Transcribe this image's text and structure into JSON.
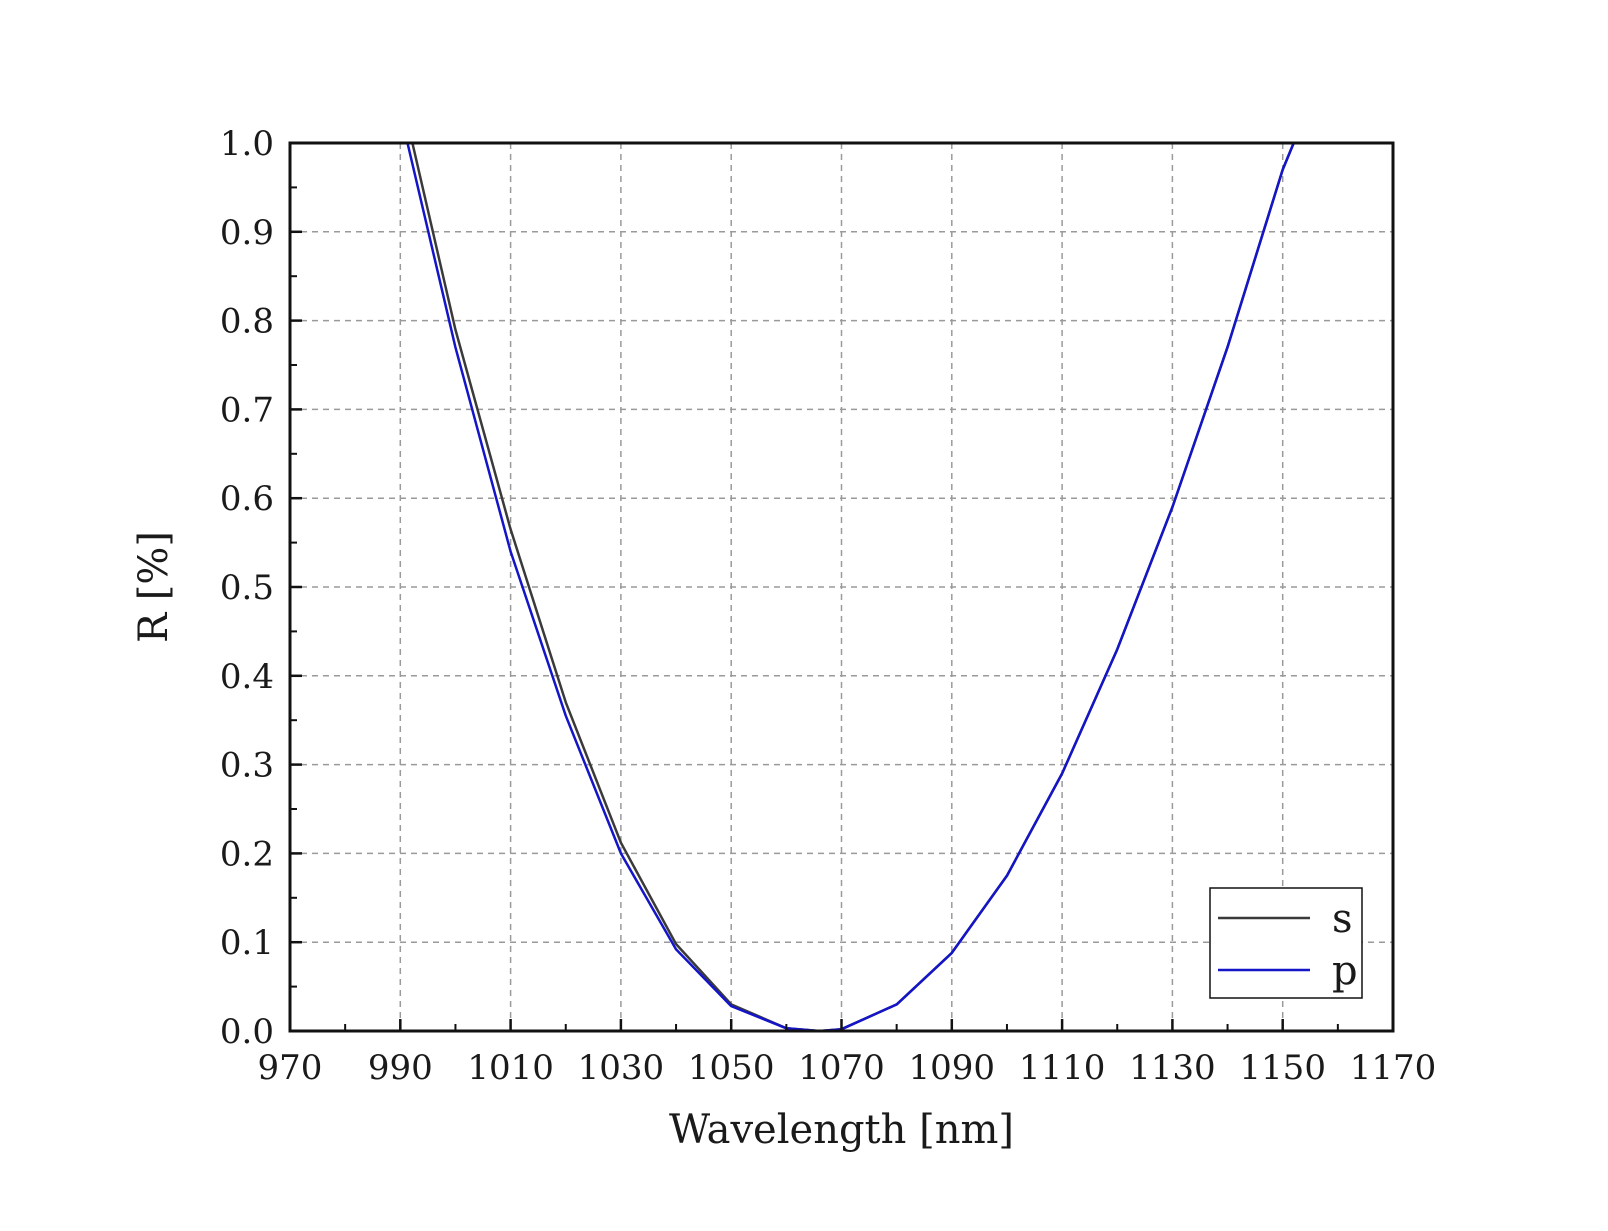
{
  "chart_data": {
    "type": "line",
    "title": "",
    "xlabel": "Wavelength [nm]",
    "ylabel": "R [%]",
    "xlim": [
      970,
      1170
    ],
    "ylim": [
      0.0,
      1.0
    ],
    "xticks": [
      "970",
      "990",
      "1010",
      "1030",
      "1050",
      "1070",
      "1090",
      "1110",
      "1130",
      "1150",
      "1170"
    ],
    "yticks": [
      "0.0",
      "0.1",
      "0.2",
      "0.3",
      "0.4",
      "0.5",
      "0.6",
      "0.7",
      "0.8",
      "0.9",
      "1.0"
    ],
    "grid": true,
    "legend_position": "bottom-right",
    "series": [
      {
        "name": "s",
        "color": "#3a3a3a",
        "x": [
          992.2,
          1000,
          1010,
          1020,
          1030,
          1040,
          1050,
          1060,
          1066,
          1070,
          1080,
          1090,
          1100,
          1110,
          1120,
          1130,
          1140,
          1150,
          1152
        ],
        "y": [
          1.0,
          0.79,
          0.565,
          0.37,
          0.212,
          0.098,
          0.03,
          0.003,
          0.0,
          0.002,
          0.03,
          0.088,
          0.175,
          0.29,
          0.43,
          0.59,
          0.77,
          0.97,
          1.0
        ]
      },
      {
        "name": "p",
        "color": "#1414c8",
        "x": [
          991.3,
          1000,
          1010,
          1020,
          1030,
          1040,
          1050,
          1060,
          1066,
          1070,
          1080,
          1090,
          1100,
          1110,
          1120,
          1130,
          1140,
          1150,
          1152
        ],
        "y": [
          1.0,
          0.77,
          0.54,
          0.355,
          0.2,
          0.092,
          0.028,
          0.003,
          0.0,
          0.002,
          0.03,
          0.088,
          0.175,
          0.29,
          0.43,
          0.59,
          0.77,
          0.97,
          1.0
        ]
      }
    ]
  }
}
